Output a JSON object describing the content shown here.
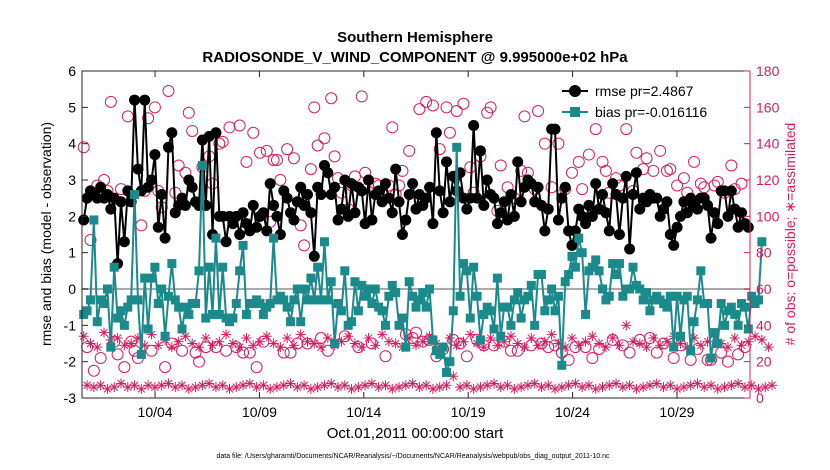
{
  "chart_data": {
    "type": "line",
    "title": "Southern Hemisphere",
    "subtitle": "RADIOSONDE_V_WIND_COMPONENT @ 9.995000e+02 hPa",
    "xlabel": "Oct.01,2011 00:00:00 start",
    "ylabel_left": "rmse and bias (model - observation)",
    "ylabel_right": "# of obs: o=possible; ∗=assimilated",
    "footnote": "data file: /Users/gharamti/Documents/NCAR/Reanalysis/~/Documents/NCAR/Reanalysis/webpub/obs_diag_output_2011-10.nc",
    "xlim": [
      0.5,
      32.5
    ],
    "ylim_left": [
      -3,
      6
    ],
    "ylim_right": [
      0,
      180
    ],
    "x_ticks": [
      4,
      9,
      14,
      19,
      24,
      29
    ],
    "x_tick_labels": [
      "10/04",
      "10/09",
      "10/14",
      "10/19",
      "10/24",
      "10/29"
    ],
    "y_ticks_left": [
      -3,
      -2,
      -1,
      0,
      1,
      2,
      3,
      4,
      5,
      6
    ],
    "y_ticks_right": [
      0,
      20,
      40,
      60,
      80,
      100,
      120,
      140,
      160,
      180
    ],
    "legend": [
      "rmse pr=2.4867",
      "bias pr=-0.016116"
    ],
    "colors": {
      "rmse": "#000000",
      "bias": "#1a8a8a",
      "obs": "#d81b60",
      "zero_line": "#aaaaaa",
      "axis": "#262626"
    },
    "series": [
      {
        "name": "rmse",
        "values": [
          1.9,
          2.5,
          2.7,
          2.6,
          2.5,
          2.8,
          2.5,
          2.6,
          2.2,
          2.5,
          0.7,
          2.4,
          1.3,
          2.7,
          2.4,
          5.2,
          3.3,
          2.7,
          5.2,
          2.8,
          3.0,
          3.7,
          1.7,
          2.6,
          1.4,
          3.9,
          4.3,
          2.1,
          2.3,
          2.5,
          2.3,
          3.0,
          2.8,
          2.4,
          2.3,
          4.1,
          2.3,
          4.2,
          1.5,
          4.3,
          2.0,
          2.0,
          1.3,
          2.0,
          1.8,
          2.0,
          1.5,
          2.1,
          1.8,
          1.6,
          2.3,
          1.7,
          2.0,
          2.1,
          1.6,
          2.9,
          2.3,
          2.0,
          1.5,
          2.7,
          2.5,
          2.1,
          1.9,
          2.4,
          2.8,
          2.3,
          2.6,
          2.1,
          0.9,
          2.8,
          2.6,
          3.4,
          3.2,
          2.6,
          2.8,
          1.9,
          2.2,
          3.0,
          2.0,
          2.9,
          2.1,
          2.8,
          2.7,
          1.8,
          3.0,
          1.9,
          2.6,
          2.7,
          2.4,
          2.9,
          2.5,
          2.1,
          3.3,
          2.4,
          1.5,
          1.9,
          2.6,
          2.9,
          2.2,
          2.6,
          2.3,
          2.5,
          2.8,
          1.8,
          4.3,
          2.7,
          2.1,
          3.5,
          2.4,
          3.1,
          2.7,
          3.2,
          2.5,
          2.2,
          2.5,
          4.5,
          2.5,
          3.8,
          2.3,
          3.0,
          2.6,
          2.5,
          1.8,
          2.1,
          2.4,
          1.9,
          2.6,
          2.0,
          3.5,
          2.4,
          2.8,
          3.0,
          2.9,
          2.4,
          2.8,
          2.3,
          1.6,
          2.2,
          4.4,
          4.4,
          1.9,
          2.5,
          2.8,
          1.6,
          1.2,
          1.6,
          2.2,
          2.0,
          1.8,
          2.3,
          2.0,
          2.9,
          2.2,
          2.6,
          2.1,
          1.6,
          2.9,
          2.6,
          1.5,
          2.5,
          3.1,
          1.1,
          2.6,
          3.2,
          2.2,
          2.5,
          2.4,
          2.6,
          2.5,
          2.5,
          2.0,
          2.2,
          2.4,
          1.5,
          1.2,
          1.7,
          2.0,
          2.4,
          2.1,
          2.5,
          2.3,
          2.2,
          2.5,
          2.5,
          2.3,
          1.4,
          2.1,
          1.8,
          2.7,
          2.7,
          2.0,
          2.7,
          2.2,
          1.7,
          2.1,
          1.8,
          1.7
        ]
      },
      {
        "name": "bias",
        "values": [
          -0.7,
          -0.6,
          -0.3,
          1.9,
          -0.9,
          -0.3,
          -0.4,
          0.0,
          -1.6,
          0.6,
          -0.8,
          -0.6,
          -1.0,
          -0.5,
          -0.3,
          2.6,
          -0.3,
          -1.8,
          0.3,
          -1.1,
          0.3,
          0.6,
          -0.4,
          0.0,
          -1.3,
          -0.2,
          0.7,
          -0.3,
          -0.5,
          -1.1,
          -0.5,
          -0.7,
          -0.4,
          -0.4,
          0.5,
          3.4,
          -0.8,
          0.6,
          -0.7,
          1.4,
          -0.7,
          0.6,
          -0.8,
          -0.9,
          -0.8,
          -0.4,
          0.5,
          1.2,
          -0.7,
          -0.4,
          -0.4,
          -0.3,
          -0.4,
          -0.7,
          -0.5,
          -0.4,
          1.4,
          -0.3,
          -0.2,
          -0.3,
          -0.5,
          -0.9,
          -0.3,
          0.0,
          -0.9,
          0.0,
          -0.3,
          0.3,
          -0.3,
          0.6,
          -0.3,
          1.3,
          -0.3,
          0.2,
          -1.5,
          -0.4,
          -0.6,
          0.5,
          -1.0,
          -0.9,
          0.2,
          -0.6,
          0.1,
          -0.2,
          0.0,
          -0.4,
          0.0,
          -0.5,
          -0.6,
          -1.0,
          -0.2,
          0.1,
          -0.1,
          -1.0,
          -0.8,
          -1.6,
          0.2,
          -0.2,
          -0.5,
          -0.3,
          -0.1,
          -0.5,
          0.0,
          -1.4,
          -1.7,
          -1.8,
          -1.6,
          -2.3,
          -2.0,
          -0.6,
          3.9,
          -0.2,
          0.7,
          0.5,
          -0.8,
          0.6,
          -0.2,
          -1.4,
          -0.7,
          -0.5,
          -0.6,
          -1.1,
          0.3,
          -1.3,
          -0.5,
          -0.5,
          -1.0,
          -0.3,
          -0.1,
          -0.8,
          -0.3,
          -0.2,
          0.1,
          -1.0,
          0.4,
          0.4,
          -0.6,
          -0.3,
          0.0,
          -0.6,
          -0.2,
          -2.1,
          0.2,
          0.4,
          0.9,
          0.6,
          1.4,
          1.0,
          -0.7,
          0.5,
          0.6,
          0.8,
          0.5,
          0.0,
          -0.3,
          -0.2,
          0.7,
          0.4,
          0.7,
          -0.2,
          0.0,
          0.0,
          0.6,
          0.1,
          0.0,
          -0.3,
          -0.1,
          -0.6,
          -0.3,
          -0.2,
          -0.3,
          -0.4,
          -0.5,
          -0.2,
          -1.6,
          -0.2,
          -1.3,
          -0.3,
          -0.2,
          -1.7,
          -0.9,
          -0.3,
          0.5,
          -0.4,
          -0.4,
          -1.9,
          -1.2,
          -1.5,
          -0.4,
          -1.0,
          -0.6,
          -0.5,
          -0.7,
          -1.0,
          -0.4,
          -0.5,
          -1.1,
          -0.2,
          -0.4,
          -0.3,
          1.3
        ]
      },
      {
        "name": "possible",
        "values": [
          138,
          28,
          87,
          15,
          117,
          22,
          120,
          114,
          163,
          31,
          24,
          115,
          17,
          155,
          31,
          26,
          22,
          95,
          114,
          154,
          26,
          160,
          114,
          105,
          17,
          169,
          30,
          113,
          128,
          26,
          124,
          157,
          147,
          25,
          20,
          127,
          28,
          133,
          118,
          28,
          140,
          141,
          26,
          149,
          99,
          28,
          150,
          25,
          130,
          25,
          146,
          17,
          135,
          31,
          136,
          97,
          131,
          131,
          120,
          25,
          137,
          25,
          132,
          30,
          95,
          84,
          30,
          126,
          160,
          139,
          33,
          143,
          26,
          165,
          133,
          121,
          113,
          34,
          104,
          117,
          122,
          28,
          166,
          124,
          116,
          30,
          118,
          117,
          112,
          23,
          117,
          149,
          112,
          117,
          125,
          35,
          136,
          33,
          36,
          159,
          31,
          163,
          32,
          161,
          23,
          137,
          27,
          160,
          146,
          32,
          158,
          30,
          162,
          23,
          127,
          113,
          32,
          133,
          29,
          157,
          160,
          29,
          103,
          128,
          31,
          116,
          26,
          110,
          26,
          125,
          155,
          124,
          29,
          115,
          158,
          30,
          140,
          28,
          116,
          29,
          140,
          25,
          115,
          21,
          124,
          28,
          130,
          115,
          28,
          134,
          22,
          148,
          27,
          130,
          125,
          113,
          32,
          121,
          117,
          29,
          148,
          25,
          114,
          135,
          32,
          126,
          132,
          33,
          125,
          25,
          136,
          30,
          125,
          126,
          22,
          117,
          29,
          121,
          113,
          21,
          130,
          27,
          118,
          116,
          21,
          21,
          117,
          119,
          25,
          113,
          20,
          128,
          115,
          24,
          118,
          28
        ]
      },
      {
        "name": "assimilated",
        "values": [
          34,
          7,
          30,
          6,
          28,
          7,
          36,
          5,
          32,
          6,
          33,
          8,
          29,
          6,
          30,
          7,
          33,
          5,
          29,
          7,
          35,
          6,
          29,
          7,
          32,
          8,
          28,
          6,
          31,
          7,
          34,
          5,
          30,
          6,
          28,
          7,
          33,
          8,
          29,
          6,
          31,
          7,
          35,
          5,
          30,
          6,
          28,
          7,
          33,
          8,
          29,
          6,
          31,
          7,
          34,
          5,
          30,
          6,
          28,
          7,
          33,
          8,
          29,
          6,
          35,
          7,
          31,
          5,
          30,
          6,
          28,
          7,
          33,
          8,
          29,
          6,
          31,
          7,
          34,
          5,
          30,
          6,
          28,
          7,
          33,
          8,
          29,
          6,
          35,
          7,
          31,
          5,
          30,
          6,
          28,
          7,
          33,
          8,
          29,
          6,
          31,
          7,
          34,
          5,
          30,
          6,
          28,
          7,
          33,
          12,
          29,
          6,
          31,
          7,
          35,
          5,
          30,
          6,
          28,
          7,
          33,
          8,
          29,
          6,
          31,
          7,
          34,
          5,
          30,
          6,
          28,
          7,
          33,
          8,
          29,
          6,
          31,
          7,
          35,
          5,
          30,
          6,
          28,
          7,
          33,
          8,
          29,
          6,
          31,
          7,
          34,
          5,
          30,
          6,
          28,
          7,
          33,
          8,
          29,
          6,
          40,
          7,
          31,
          5,
          30,
          6,
          28,
          7,
          33,
          8,
          29,
          6,
          31,
          7,
          34,
          5,
          30,
          6,
          28,
          7,
          33,
          8,
          29,
          6,
          31,
          7,
          35,
          5,
          30,
          6,
          28,
          7,
          33,
          8,
          29,
          6,
          31,
          7,
          34,
          5,
          32,
          6,
          28,
          7
        ]
      }
    ]
  }
}
